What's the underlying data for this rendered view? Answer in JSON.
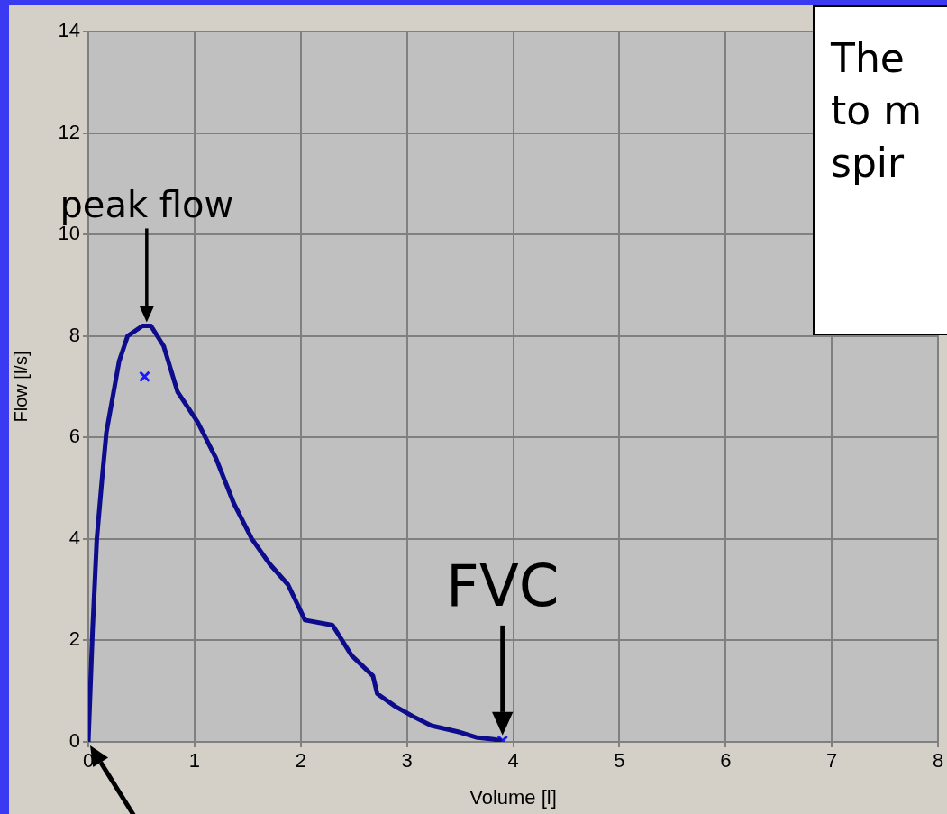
{
  "chart_data": {
    "type": "line",
    "xlabel": "Volume [l]",
    "ylabel": "Flow [l/s]",
    "xlim": [
      0,
      8
    ],
    "xticks": [
      0,
      1,
      2,
      3,
      4,
      5,
      6,
      7,
      8
    ],
    "ylim": [
      0,
      14
    ],
    "yticks": [
      0,
      2,
      4,
      6,
      8,
      10,
      12,
      14
    ],
    "grid": true,
    "legend": false,
    "series": [
      {
        "type": "line",
        "color": "#0c0c8c",
        "line_style": "solid",
        "marker": "none",
        "x": [
          0,
          0.02,
          0.04,
          0.08,
          0.13,
          0.17,
          0.23,
          0.29,
          0.37,
          0.51,
          0.59,
          0.71,
          0.84,
          1.03,
          1.2,
          1.37,
          1.54,
          1.71,
          1.88,
          2.04,
          2.3,
          2.48,
          2.68,
          2.72,
          2.89,
          3.06,
          3.23,
          3.48,
          3.65,
          3.82,
          3.89
        ],
        "values": [
          0,
          1.1,
          2.2,
          4.0,
          5.2,
          6.1,
          6.8,
          7.5,
          8.0,
          8.2,
          8.2,
          7.8,
          6.9,
          6.3,
          5.6,
          4.7,
          4.0,
          3.5,
          3.1,
          2.4,
          2.3,
          1.7,
          1.3,
          0.95,
          0.7,
          0.5,
          0.32,
          0.2,
          0.09,
          0.05,
          0.02
        ]
      },
      {
        "type": "scatter",
        "color": "#1a1aff",
        "marker": "cross",
        "x": [
          0.53,
          3.9
        ],
        "values": [
          7.2,
          0.02
        ]
      }
    ],
    "annotations": [
      {
        "text": "peak flow",
        "x": 0.55,
        "y": 8.2
      },
      {
        "text": "FVC",
        "x": 3.9,
        "y": 0.02
      },
      "The",
      "to m",
      "spir"
    ]
  }
}
